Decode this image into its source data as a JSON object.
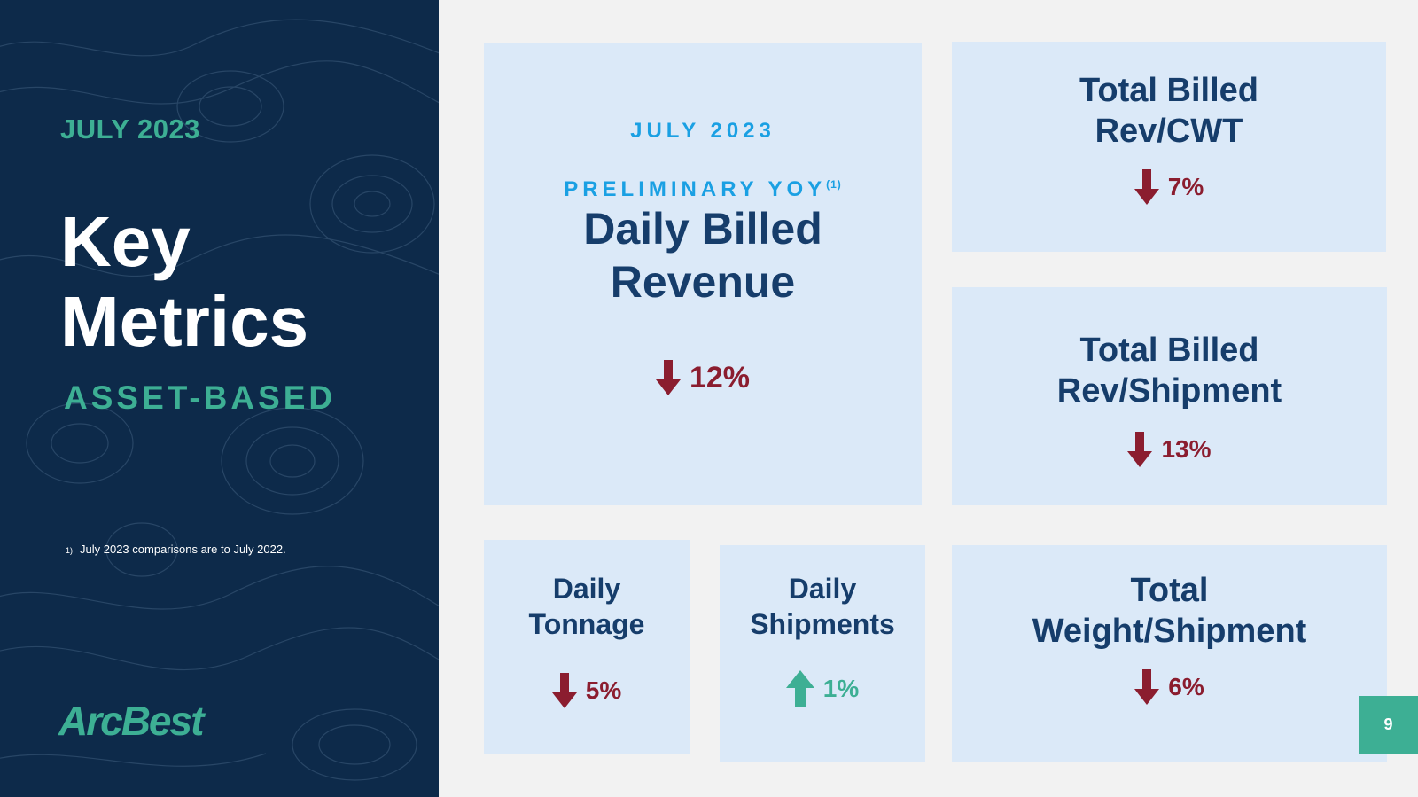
{
  "left_panel": {
    "date_label": "JULY 2023",
    "title": "Key\nMetrics",
    "segment": "ASSET-BASED",
    "footnote_marker": "1)",
    "footnote_text": "July 2023 comparisons are to July 2022.",
    "logo_text": "ArcBest"
  },
  "main_card": {
    "header_line1": "JULY 2023",
    "header_line2": "PRELIMINARY YOY",
    "header_sup": "(1)",
    "title": "Daily Billed\nRevenue",
    "direction": "down",
    "value": "12%"
  },
  "metrics": {
    "rev_cwt": {
      "title": "Total Billed\nRev/CWT",
      "direction": "down",
      "value": "7%"
    },
    "rev_shipment": {
      "title": "Total Billed\nRev/Shipment",
      "direction": "down",
      "value": "13%"
    },
    "daily_tonnage": {
      "title": "Daily\nTonnage",
      "direction": "down",
      "value": "5%"
    },
    "daily_shipments": {
      "title": "Daily\nShipments",
      "direction": "up",
      "value": "1%"
    },
    "weight_shipment": {
      "title": "Total\nWeight/Shipment",
      "direction": "down",
      "value": "6%"
    }
  },
  "colors": {
    "panel_bg": "#0d2a4a",
    "accent_green": "#3daf94",
    "card_bg": "#dbe9f8",
    "title_navy": "#163d6b",
    "down_red": "#8b1d2f",
    "header_blue": "#1aa0e3"
  },
  "page_number": "9"
}
